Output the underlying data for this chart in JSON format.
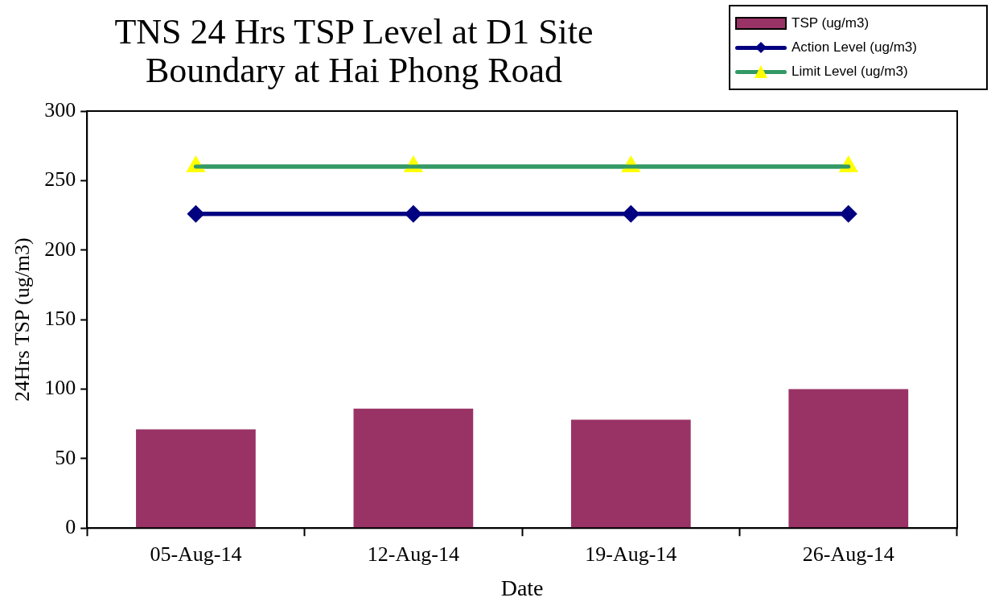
{
  "chart_data": {
    "type": "bar",
    "title": "TNS 24 Hrs TSP Level at D1 Site Boundary at Hai Phong Road",
    "xlabel": "Date",
    "ylabel": "24Hrs TSP (ug/m3)",
    "categories": [
      "05-Aug-14",
      "12-Aug-14",
      "19-Aug-14",
      "26-Aug-14"
    ],
    "series": [
      {
        "name": "TSP (ug/m3)",
        "color": "#993366",
        "values": [
          71,
          86,
          78,
          100
        ]
      },
      {
        "name": "Action Level (ug/m3)",
        "type": "line",
        "color": "#000080",
        "marker": "diamond",
        "values": [
          226,
          226,
          226,
          226
        ]
      },
      {
        "name": "Limit Level (ug/m3)",
        "type": "line",
        "color": "#339966",
        "colors": [
          "#ffff00",
          "#ffff00",
          "#ffff00",
          "#ffff00"
        ],
        "marker": "triangle",
        "values": [
          260,
          260,
          260,
          260
        ]
      }
    ],
    "ylim": [
      0,
      300
    ],
    "yticks": [
      0,
      50,
      100,
      150,
      200,
      250,
      300
    ],
    "grid": false,
    "legend": "top right"
  }
}
